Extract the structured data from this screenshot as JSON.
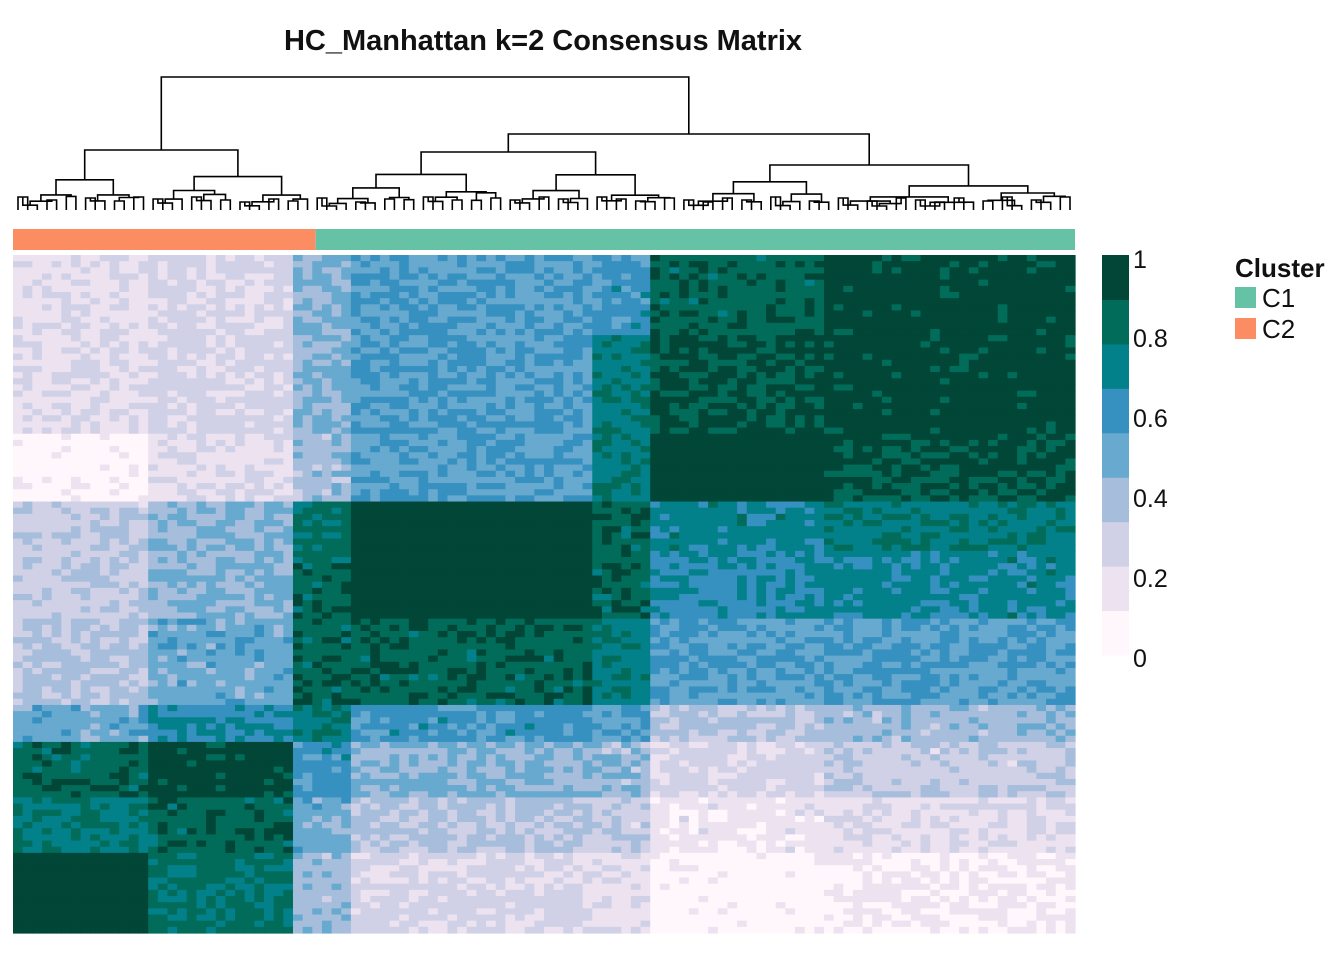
{
  "chart_data": {
    "type": "heatmap",
    "title": "HC_Manhattan k=2 Consensus Matrix",
    "color_scale": {
      "min": 0,
      "max": 1,
      "ticks": [
        "1",
        "0.8",
        "0.6",
        "0.4",
        "0.2",
        "0"
      ],
      "colors": [
        "#fff7fb",
        "#ece2f0",
        "#d0d1e6",
        "#a6bddb",
        "#67a9cf",
        "#3690c0",
        "#02818a",
        "#016c59",
        "#014636"
      ]
    },
    "cluster_legend": {
      "title": "Cluster",
      "entries": [
        {
          "label": "C1",
          "color": "#66c2a5"
        },
        {
          "label": "C2",
          "color": "#fc8d62"
        }
      ]
    },
    "annotation_bar": [
      {
        "cluster": "C2",
        "fraction": 0.285
      },
      {
        "cluster": "C1",
        "fraction": 0.715
      }
    ],
    "row_blocks": [
      0.12,
      0.14,
      0.1,
      0.08,
      0.1,
      0.12,
      0.06,
      0.08,
      0.08,
      0.12
    ],
    "col_blocks": [
      0.13,
      0.135,
      0.055,
      0.225,
      0.055,
      0.16,
      0.24
    ],
    "block_values": [
      [
        0.2,
        0.25,
        0.45,
        0.55,
        0.6,
        0.85,
        0.95
      ],
      [
        0.2,
        0.25,
        0.45,
        0.55,
        0.75,
        0.9,
        0.95
      ],
      [
        0.05,
        0.2,
        0.4,
        0.55,
        0.75,
        0.97,
        0.9
      ],
      [
        0.3,
        0.45,
        0.8,
        0.97,
        0.85,
        0.7,
        0.75
      ],
      [
        0.3,
        0.45,
        0.85,
        0.97,
        0.85,
        0.65,
        0.7
      ],
      [
        0.35,
        0.5,
        0.85,
        0.85,
        0.75,
        0.55,
        0.55
      ],
      [
        0.5,
        0.65,
        0.75,
        0.6,
        0.55,
        0.35,
        0.4
      ],
      [
        0.85,
        0.95,
        0.6,
        0.45,
        0.4,
        0.25,
        0.3
      ],
      [
        0.75,
        0.85,
        0.5,
        0.35,
        0.3,
        0.15,
        0.2
      ],
      [
        0.97,
        0.8,
        0.4,
        0.25,
        0.2,
        0.05,
        0.12
      ]
    ]
  }
}
